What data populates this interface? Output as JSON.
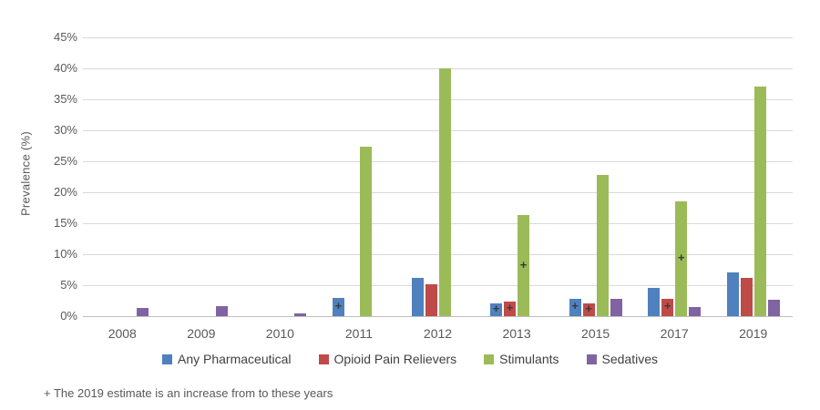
{
  "chart_data": {
    "type": "bar",
    "title": "",
    "ylabel": "Prevalence (%)",
    "xlabel": "",
    "ylim": [
      0,
      45
    ],
    "ytick_step": 5,
    "yticks": [
      "0%",
      "5%",
      "10%",
      "15%",
      "20%",
      "25%",
      "30%",
      "35%",
      "40%",
      "45%"
    ],
    "grid": "horizontal",
    "legend_position": "bottom",
    "categories": [
      "2008",
      "2009",
      "2010",
      "2011",
      "2012",
      "2013",
      "2015",
      "2017",
      "2019"
    ],
    "series": [
      {
        "name": "Any Pharmaceutical",
        "color": "#4e81bd",
        "values": [
          null,
          null,
          null,
          3.0,
          6.2,
          2.1,
          2.8,
          4.6,
          7.0
        ],
        "plus_flags": [
          false,
          false,
          false,
          true,
          false,
          true,
          true,
          false,
          false
        ]
      },
      {
        "name": "Opioid Pain Relievers",
        "color": "#be4b48",
        "values": [
          null,
          null,
          null,
          null,
          5.1,
          2.3,
          2.0,
          2.8,
          6.2
        ],
        "plus_flags": [
          false,
          false,
          false,
          false,
          false,
          true,
          true,
          true,
          false
        ]
      },
      {
        "name": "Stimulants",
        "color": "#9bbb59",
        "values": [
          null,
          null,
          null,
          27.4,
          40.0,
          16.3,
          22.8,
          18.6,
          37.0
        ],
        "plus_flags": [
          false,
          false,
          false,
          false,
          false,
          true,
          false,
          true,
          false
        ]
      },
      {
        "name": "Sedatives",
        "color": "#8064a2",
        "values": [
          1.3,
          1.6,
          0.4,
          null,
          null,
          null,
          2.8,
          1.4,
          2.6
        ],
        "plus_flags": [
          false,
          false,
          false,
          false,
          false,
          false,
          false,
          false,
          false
        ]
      }
    ],
    "plus_symbol": "+",
    "footnote": "+ The 2019 estimate is an increase from to these years",
    "colors": {
      "gridline": "#d9d9d9",
      "axis_line": "#bfbfbf",
      "tick_text": "#595959",
      "legend_text": "#404040"
    }
  }
}
